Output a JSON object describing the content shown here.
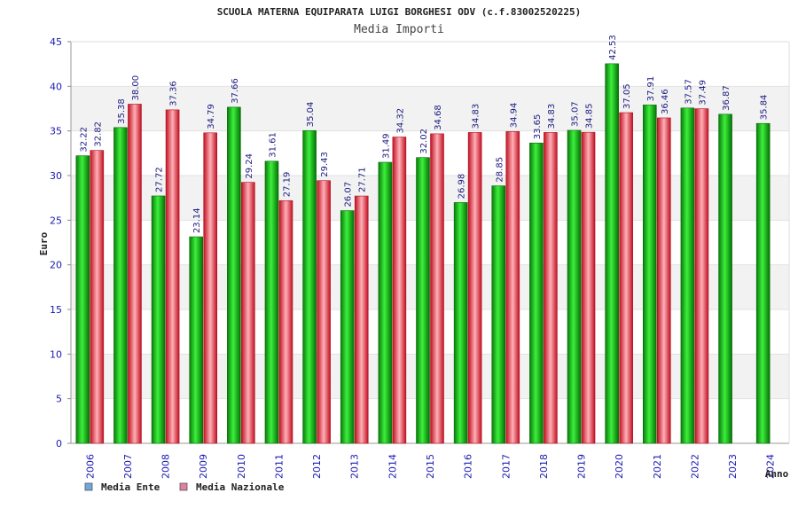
{
  "chart_data": {
    "type": "bar",
    "title": "SCUOLA MATERNA EQUIPARATA LUIGI BORGHESI ODV (c.f.83002520225)",
    "subtitle": "Media Importi",
    "xlabel": "Anno",
    "ylabel": "Euro",
    "ylim": [
      0,
      45
    ],
    "yticks": [
      "0",
      "5",
      "10",
      "15",
      "20",
      "25",
      "30",
      "35",
      "40",
      "45"
    ],
    "grid": true,
    "legend_position": "bottom-left",
    "categories": [
      "2006",
      "2007",
      "2008",
      "2009",
      "2010",
      "2011",
      "2012",
      "2013",
      "2014",
      "2015",
      "2016",
      "2017",
      "2018",
      "2019",
      "2020",
      "2021",
      "2022",
      "2023",
      "2024"
    ],
    "series": [
      {
        "name": "Media Ente",
        "color": "#00c000",
        "legend_color": "#6fa8dc",
        "values": [
          32.22,
          35.38,
          27.72,
          23.14,
          37.66,
          31.61,
          35.04,
          26.07,
          31.49,
          32.02,
          26.98,
          28.85,
          33.65,
          35.07,
          42.53,
          37.91,
          37.57,
          36.87,
          35.84
        ],
        "labels": [
          "32.22",
          "35.38",
          "27.72",
          "23.14",
          "37.66",
          "31.61",
          "35.04",
          "26.07",
          "31.49",
          "32.02",
          "26.98",
          "28.85",
          "33.65",
          "35.07",
          "42.53",
          "37.91",
          "37.57",
          "36.87",
          "35.84"
        ]
      },
      {
        "name": "Media Nazionale",
        "color": "#e83030",
        "legend_color": "#e080a0",
        "values": [
          32.82,
          38.0,
          37.36,
          34.79,
          29.24,
          27.19,
          29.43,
          27.71,
          34.32,
          34.68,
          34.83,
          34.94,
          34.83,
          34.85,
          37.05,
          36.46,
          37.49,
          null,
          null
        ],
        "labels": [
          "32.82",
          "38.00",
          "37.36",
          "34.79",
          "29.24",
          "27.19",
          "29.43",
          "27.71",
          "34.32",
          "34.68",
          "34.83",
          "34.94",
          "34.83",
          "34.85",
          "37.05",
          "36.46",
          "37.49",
          "",
          ""
        ]
      }
    ]
  }
}
